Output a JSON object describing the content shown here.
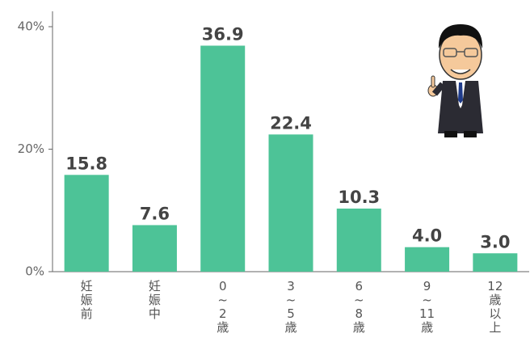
{
  "chart_data": {
    "type": "bar",
    "categories": [
      "妊\n娠\n前",
      "妊\n娠\n中",
      "0\n~\n2\n歳",
      "3\n~\n5\n歳",
      "6\n~\n8\n歳",
      "9\n~\n11\n歳",
      "12\n歳\n以\n上"
    ],
    "values": [
      15.8,
      7.6,
      36.9,
      22.4,
      10.3,
      4.0,
      3.0
    ],
    "value_labels": [
      "15.8",
      "7.6",
      "36.9",
      "22.4",
      "10.3",
      "4.0",
      "3.0"
    ],
    "color": "#4dc397",
    "ylim": [
      0,
      40
    ],
    "yticks": [
      {
        "value": 0,
        "label": "0%"
      },
      {
        "value": 20,
        "label": "20%"
      },
      {
        "value": 40,
        "label": "40%"
      }
    ],
    "grid": false
  }
}
